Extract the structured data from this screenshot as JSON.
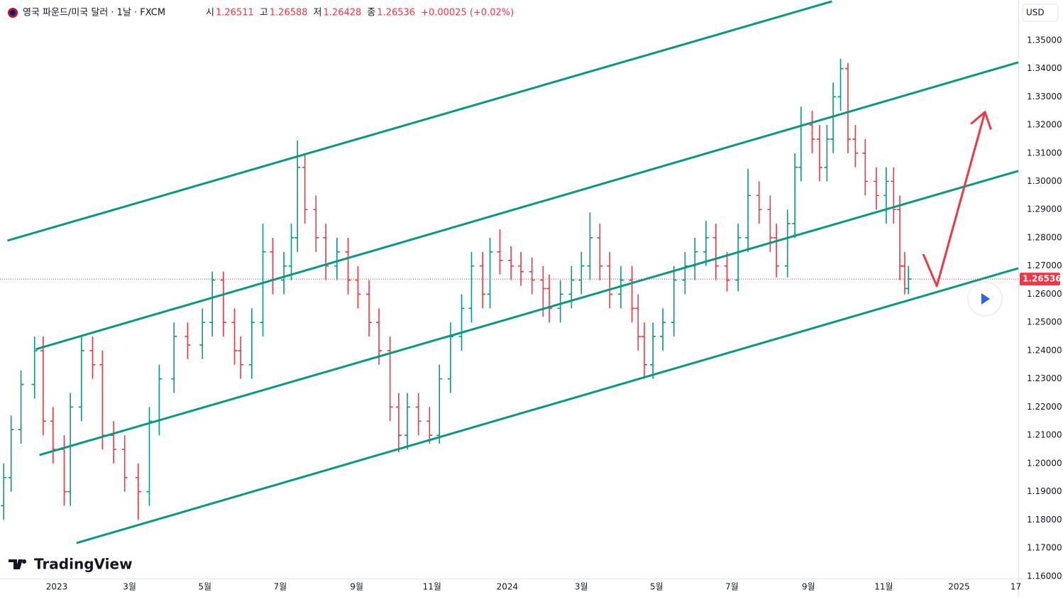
{
  "chart_data": {
    "type": "ohlc",
    "title": "영국 파운드/미국 달러 · 1날 · FXCM",
    "legend": [
      {
        "label": "시",
        "value": "1.26511"
      },
      {
        "label": "고",
        "value": "1.26588"
      },
      {
        "label": "저",
        "value": "1.26428"
      },
      {
        "label": "종",
        "value": "1.26536"
      }
    ],
    "change": "+0.00025 (+0.02%)",
    "currency": "USD",
    "logo": "TradingView",
    "up_color": "#089981",
    "down_color": "#f23645",
    "trend_color": "#089981",
    "arrow_color": "#f23645",
    "xlim": [
      -46,
      779
    ],
    "xticks": [
      {
        "value": 0,
        "label": "2023"
      },
      {
        "value": 59,
        "label": "3월"
      },
      {
        "value": 120,
        "label": "5월"
      },
      {
        "value": 181,
        "label": "7월"
      },
      {
        "value": 243,
        "label": "9월"
      },
      {
        "value": 304,
        "label": "11월"
      },
      {
        "value": 365,
        "label": "2024"
      },
      {
        "value": 425,
        "label": "3월"
      },
      {
        "value": 486,
        "label": "5월"
      },
      {
        "value": 547,
        "label": "7월"
      },
      {
        "value": 609,
        "label": "9월"
      },
      {
        "value": 670,
        "label": "11월"
      },
      {
        "value": 731,
        "label": "2025"
      },
      {
        "value": 777,
        "label": "17"
      }
    ],
    "ylim": [
      1.1592,
      1.3643
    ],
    "yticks": [
      {
        "value": 1.16,
        "label": "1.16000"
      },
      {
        "value": 1.17,
        "label": "1.17000"
      },
      {
        "value": 1.18,
        "label": "1.18000"
      },
      {
        "value": 1.19,
        "label": "1.19000"
      },
      {
        "value": 1.2,
        "label": "1.20000"
      },
      {
        "value": 1.21,
        "label": "1.21000"
      },
      {
        "value": 1.22,
        "label": "1.22000"
      },
      {
        "value": 1.23,
        "label": "1.23000"
      },
      {
        "value": 1.24,
        "label": "1.24000"
      },
      {
        "value": 1.25,
        "label": "1.25000"
      },
      {
        "value": 1.26,
        "label": "1.26000"
      },
      {
        "value": 1.27,
        "label": "1.27000"
      },
      {
        "value": 1.28,
        "label": "1.28000"
      },
      {
        "value": 1.29,
        "label": "1.29000"
      },
      {
        "value": 1.3,
        "label": "1.30000"
      },
      {
        "value": 1.31,
        "label": "1.31000"
      },
      {
        "value": 1.32,
        "label": "1.32000"
      },
      {
        "value": 1.33,
        "label": "1.33000"
      },
      {
        "value": 1.34,
        "label": "1.34000"
      },
      {
        "value": 1.35,
        "label": "1.35000"
      }
    ],
    "grid": false,
    "x": [
      -43,
      -37,
      -29,
      -18,
      -11,
      -3,
      6,
      11,
      20,
      29,
      37,
      46,
      55,
      66,
      75,
      83,
      95,
      106,
      118,
      126,
      135,
      144,
      149,
      158,
      167,
      175,
      184,
      190,
      195,
      201,
      210,
      218,
      227,
      236,
      244,
      253,
      261,
      270,
      277,
      284,
      293,
      302,
      310,
      319,
      328,
      336,
      345,
      351,
      359,
      368,
      376,
      385,
      394,
      399,
      408,
      417,
      425,
      432,
      440,
      448,
      457,
      466,
      471,
      476,
      483,
      491,
      500,
      509,
      517,
      526,
      534,
      543,
      552,
      560,
      569,
      578,
      583,
      592,
      598,
      603,
      612,
      618,
      624,
      629,
      635,
      641,
      647,
      655,
      664,
      672,
      678,
      683,
      687,
      690
    ],
    "open": [
      1.185,
      1.195,
      1.212,
      1.228,
      1.24,
      1.215,
      1.205,
      1.19,
      1.22,
      1.24,
      1.235,
      1.21,
      1.205,
      1.195,
      1.19,
      1.215,
      1.23,
      1.245,
      1.242,
      1.25,
      1.265,
      1.25,
      1.24,
      1.235,
      1.25,
      1.275,
      1.265,
      1.27,
      1.28,
      1.305,
      1.29,
      1.28,
      1.27,
      1.275,
      1.265,
      1.26,
      1.25,
      1.24,
      1.22,
      1.21,
      1.22,
      1.215,
      1.21,
      1.23,
      1.245,
      1.255,
      1.27,
      1.26,
      1.275,
      1.272,
      1.27,
      1.268,
      1.265,
      1.262,
      1.255,
      1.26,
      1.265,
      1.27,
      1.28,
      1.27,
      1.26,
      1.265,
      1.255,
      1.245,
      1.235,
      1.245,
      1.25,
      1.265,
      1.27,
      1.275,
      1.28,
      1.27,
      1.265,
      1.28,
      1.295,
      1.29,
      1.28,
      1.27,
      1.285,
      1.305,
      1.32,
      1.315,
      1.305,
      1.315,
      1.33,
      1.34,
      1.315,
      1.31,
      1.3,
      1.295,
      1.3,
      1.29,
      1.27,
      1.262
    ],
    "high": [
      1.2,
      1.217,
      1.233,
      1.245,
      1.245,
      1.22,
      1.21,
      1.225,
      1.245,
      1.245,
      1.24,
      1.215,
      1.21,
      1.2,
      1.22,
      1.235,
      1.25,
      1.25,
      1.255,
      1.268,
      1.268,
      1.255,
      1.245,
      1.255,
      1.285,
      1.28,
      1.275,
      1.285,
      1.3145,
      1.31,
      1.295,
      1.285,
      1.28,
      1.28,
      1.27,
      1.265,
      1.255,
      1.245,
      1.225,
      1.225,
      1.225,
      1.22,
      1.235,
      1.25,
      1.26,
      1.275,
      1.275,
      1.28,
      1.283,
      1.277,
      1.275,
      1.273,
      1.27,
      1.267,
      1.265,
      1.27,
      1.275,
      1.289,
      1.285,
      1.275,
      1.27,
      1.27,
      1.26,
      1.25,
      1.25,
      1.255,
      1.27,
      1.275,
      1.28,
      1.286,
      1.285,
      1.275,
      1.285,
      1.3045,
      1.3,
      1.295,
      1.285,
      1.29,
      1.31,
      1.3265,
      1.325,
      1.32,
      1.32,
      1.335,
      1.3435,
      1.342,
      1.32,
      1.315,
      1.305,
      1.305,
      1.305,
      1.295,
      1.275,
      1.27
    ],
    "low": [
      1.18,
      1.19,
      1.207,
      1.223,
      1.21,
      1.2,
      1.185,
      1.185,
      1.215,
      1.23,
      1.205,
      1.2,
      1.19,
      1.18,
      1.185,
      1.21,
      1.225,
      1.237,
      1.237,
      1.245,
      1.245,
      1.235,
      1.23,
      1.23,
      1.245,
      1.26,
      1.26,
      1.265,
      1.275,
      1.285,
      1.275,
      1.265,
      1.265,
      1.26,
      1.255,
      1.245,
      1.235,
      1.215,
      1.204,
      1.205,
      1.21,
      1.207,
      1.207,
      1.225,
      1.24,
      1.25,
      1.255,
      1.255,
      1.267,
      1.265,
      1.263,
      1.26,
      1.252,
      1.25,
      1.25,
      1.255,
      1.26,
      1.265,
      1.265,
      1.255,
      1.255,
      1.25,
      1.24,
      1.23,
      1.23,
      1.24,
      1.245,
      1.26,
      1.265,
      1.27,
      1.265,
      1.261,
      1.261,
      1.275,
      1.285,
      1.275,
      1.266,
      1.266,
      1.28,
      1.3,
      1.31,
      1.3,
      1.3,
      1.31,
      1.325,
      1.31,
      1.305,
      1.295,
      1.29,
      1.285,
      1.285,
      1.265,
      1.26,
      1.26
    ],
    "close": [
      1.195,
      1.212,
      1.228,
      1.24,
      1.215,
      1.205,
      1.19,
      1.22,
      1.24,
      1.235,
      1.21,
      1.205,
      1.195,
      1.19,
      1.215,
      1.23,
      1.245,
      1.242,
      1.25,
      1.265,
      1.25,
      1.24,
      1.235,
      1.25,
      1.275,
      1.265,
      1.27,
      1.28,
      1.305,
      1.29,
      1.28,
      1.27,
      1.275,
      1.265,
      1.26,
      1.25,
      1.24,
      1.22,
      1.21,
      1.22,
      1.215,
      1.21,
      1.23,
      1.245,
      1.255,
      1.27,
      1.26,
      1.275,
      1.272,
      1.27,
      1.268,
      1.265,
      1.262,
      1.255,
      1.26,
      1.265,
      1.27,
      1.28,
      1.27,
      1.26,
      1.265,
      1.255,
      1.245,
      1.235,
      1.245,
      1.25,
      1.265,
      1.27,
      1.275,
      1.28,
      1.27,
      1.265,
      1.28,
      1.295,
      1.29,
      1.28,
      1.27,
      1.285,
      1.305,
      1.32,
      1.315,
      1.305,
      1.315,
      1.33,
      1.34,
      1.315,
      1.31,
      1.3,
      1.295,
      1.3,
      1.29,
      1.27,
      1.262,
      1.26536
    ],
    "trendlines": [
      {
        "x": [
          -40,
          628
        ],
        "y": [
          1.279,
          1.3638
        ]
      },
      {
        "x": [
          -17,
          779
        ],
        "y": [
          1.2405,
          1.3422
        ]
      },
      {
        "x": [
          -14,
          779
        ],
        "y": [
          1.203,
          1.3037
        ]
      },
      {
        "x": [
          16,
          779
        ],
        "y": [
          1.1718,
          1.2692
        ]
      }
    ],
    "arrow": {
      "x": [
        702,
        713,
        752
      ],
      "y": [
        1.2742,
        1.2629,
        1.3246
      ]
    }
  }
}
